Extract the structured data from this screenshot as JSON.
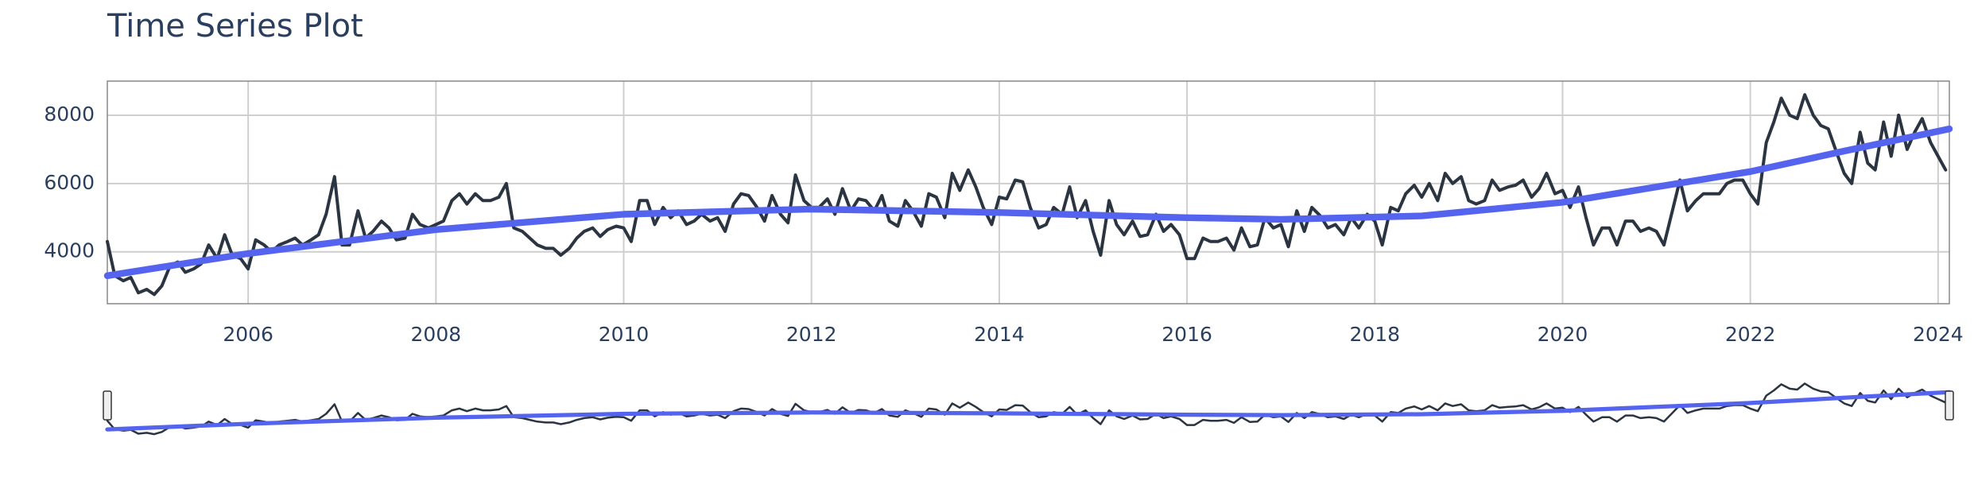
{
  "chart_data": {
    "type": "line",
    "title": "Time Series Plot",
    "xlim": [
      2004.5,
      2024.12
    ],
    "xticks": [
      2006,
      2008,
      2010,
      2012,
      2014,
      2016,
      2018,
      2020,
      2022,
      2024
    ],
    "ylim": [
      2480,
      9000
    ],
    "yticks": [
      4000,
      6000,
      8000
    ],
    "grid": true,
    "rangeslider": true,
    "series": [
      {
        "color": "#2b3441",
        "x": [
          2004.5,
          2004.58,
          2004.67,
          2004.75,
          2004.83,
          2004.92,
          2005,
          2005.08,
          2005.17,
          2005.25,
          2005.33,
          2005.42,
          2005.5,
          2005.58,
          2005.67,
          2005.75,
          2005.83,
          2005.92,
          2006,
          2006.08,
          2006.17,
          2006.25,
          2006.33,
          2006.42,
          2006.5,
          2006.58,
          2006.67,
          2006.75,
          2006.83,
          2006.92,
          2007,
          2007.08,
          2007.17,
          2007.25,
          2007.33,
          2007.42,
          2007.5,
          2007.58,
          2007.67,
          2007.75,
          2007.83,
          2007.92,
          2008,
          2008.08,
          2008.17,
          2008.25,
          2008.33,
          2008.42,
          2008.5,
          2008.58,
          2008.67,
          2008.75,
          2008.83,
          2008.92,
          2009,
          2009.08,
          2009.17,
          2009.25,
          2009.33,
          2009.42,
          2009.5,
          2009.58,
          2009.67,
          2009.75,
          2009.83,
          2009.92,
          2010,
          2010.08,
          2010.17,
          2010.25,
          2010.33,
          2010.42,
          2010.5,
          2010.58,
          2010.67,
          2010.75,
          2010.83,
          2010.92,
          2011,
          2011.08,
          2011.17,
          2011.25,
          2011.33,
          2011.42,
          2011.5,
          2011.58,
          2011.67,
          2011.75,
          2011.83,
          2011.92,
          2012,
          2012.08,
          2012.17,
          2012.25,
          2012.33,
          2012.42,
          2012.5,
          2012.58,
          2012.67,
          2012.75,
          2012.83,
          2012.92,
          2013,
          2013.08,
          2013.17,
          2013.25,
          2013.33,
          2013.42,
          2013.5,
          2013.58,
          2013.67,
          2013.75,
          2013.83,
          2013.92,
          2014,
          2014.08,
          2014.17,
          2014.25,
          2014.33,
          2014.42,
          2014.5,
          2014.58,
          2014.67,
          2014.75,
          2014.83,
          2014.92,
          2015,
          2015.08,
          2015.17,
          2015.25,
          2015.33,
          2015.42,
          2015.5,
          2015.58,
          2015.67,
          2015.75,
          2015.83,
          2015.92,
          2016,
          2016.08,
          2016.17,
          2016.25,
          2016.33,
          2016.42,
          2016.5,
          2016.58,
          2016.67,
          2016.75,
          2016.83,
          2016.92,
          2017,
          2017.08,
          2017.17,
          2017.25,
          2017.33,
          2017.42,
          2017.5,
          2017.58,
          2017.67,
          2017.75,
          2017.83,
          2017.92,
          2018,
          2018.08,
          2018.17,
          2018.25,
          2018.33,
          2018.42,
          2018.5,
          2018.58,
          2018.67,
          2018.75,
          2018.83,
          2018.92,
          2019,
          2019.08,
          2019.17,
          2019.25,
          2019.33,
          2019.42,
          2019.5,
          2019.58,
          2019.67,
          2019.75,
          2019.83,
          2019.92,
          2020,
          2020.08,
          2020.17,
          2020.25,
          2020.33,
          2020.42,
          2020.5,
          2020.58,
          2020.67,
          2020.75,
          2020.83,
          2020.92,
          2021,
          2021.08,
          2021.17,
          2021.25,
          2021.33,
          2021.42,
          2021.5,
          2021.58,
          2021.67,
          2021.75,
          2021.83,
          2021.92,
          2022,
          2022.08,
          2022.17,
          2022.25,
          2022.33,
          2022.42,
          2022.5,
          2022.58,
          2022.67,
          2022.75,
          2022.83,
          2022.92,
          2023,
          2023.08,
          2023.17,
          2023.25,
          2023.33,
          2023.42,
          2023.5,
          2023.58,
          2023.67,
          2023.75,
          2023.83,
          2023.92,
          2024,
          2024.08
        ],
        "values": [
          4300,
          3300,
          3150,
          3250,
          2800,
          2900,
          2750,
          3000,
          3600,
          3700,
          3400,
          3500,
          3650,
          4200,
          3800,
          4500,
          3900,
          3800,
          3500,
          4350,
          4200,
          4000,
          4200,
          4300,
          4400,
          4200,
          4350,
          4500,
          5100,
          6200,
          4200,
          4200,
          5200,
          4400,
          4600,
          4900,
          4700,
          4350,
          4400,
          5100,
          4800,
          4700,
          4800,
          4900,
          5500,
          5700,
          5400,
          5700,
          5500,
          5500,
          5600,
          6000,
          4700,
          4600,
          4400,
          4200,
          4100,
          4100,
          3900,
          4100,
          4400,
          4600,
          4700,
          4450,
          4650,
          4750,
          4700,
          4300,
          5500,
          5500,
          4800,
          5300,
          5000,
          5200,
          4800,
          4900,
          5100,
          4900,
          5000,
          4600,
          5400,
          5700,
          5650,
          5300,
          4900,
          5650,
          5100,
          4850,
          6250,
          5500,
          5300,
          5300,
          5550,
          5100,
          5850,
          5200,
          5550,
          5500,
          5200,
          5650,
          4900,
          4750,
          5500,
          5200,
          4750,
          5700,
          5600,
          5000,
          6300,
          5800,
          6400,
          5900,
          5300,
          4800,
          5600,
          5550,
          6100,
          6050,
          5300,
          4700,
          4800,
          5300,
          5100,
          5900,
          5000,
          5500,
          4600,
          3900,
          5500,
          4800,
          4500,
          4900,
          4450,
          4500,
          5100,
          4600,
          4800,
          4500,
          3800,
          3800,
          4400,
          4300,
          4300,
          4400,
          4050,
          4700,
          4150,
          4200,
          5000,
          4700,
          4800,
          4150,
          5200,
          4600,
          5300,
          5050,
          4700,
          4800,
          4500,
          5000,
          4700,
          5100,
          4900,
          4200,
          5300,
          5200,
          5700,
          5950,
          5600,
          6000,
          5500,
          6300,
          6000,
          6200,
          5500,
          5400,
          5500,
          6100,
          5800,
          5900,
          5950,
          6100,
          5600,
          5850,
          6300,
          5700,
          5800,
          5300,
          5900,
          5000,
          4200,
          4700,
          4700,
          4200,
          4900,
          4900,
          4600,
          4700,
          4600,
          4200,
          5200,
          6100,
          5200,
          5500,
          5700,
          5700,
          5700,
          6000,
          6100,
          6100,
          5700,
          5400,
          7200,
          7800,
          8500,
          8000,
          7900,
          8600,
          8000,
          7700,
          7600,
          6900,
          6300,
          6000,
          7500,
          6600,
          6400,
          7800,
          6800,
          8000,
          7000,
          7500,
          7900,
          7200,
          6800,
          6400
        ]
      },
      {
        "color": "#5564ef",
        "x": [
          2004.5,
          2006,
          2008,
          2010,
          2012,
          2014,
          2016,
          2017,
          2018.5,
          2020,
          2021,
          2022,
          2023,
          2024.12
        ],
        "values": [
          3300,
          3950,
          4650,
          5100,
          5250,
          5150,
          5000,
          4950,
          5050,
          5450,
          5900,
          6350,
          6950,
          7600
        ]
      }
    ]
  }
}
